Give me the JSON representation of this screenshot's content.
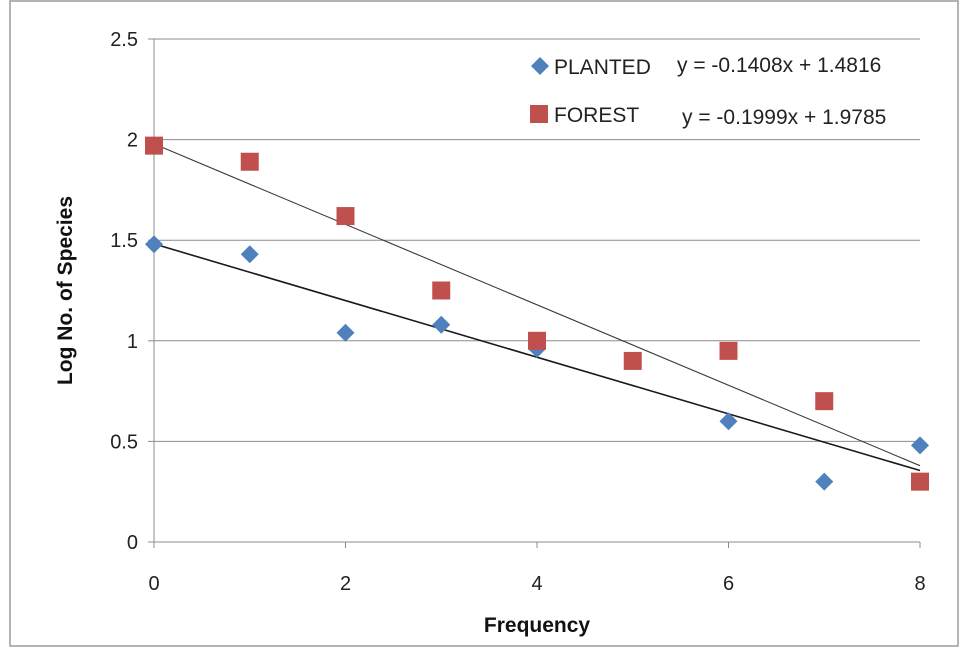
{
  "chart_data": {
    "type": "scatter",
    "title": "",
    "xlabel": "Frequency",
    "ylabel": "Log No. of Species",
    "xlim": [
      0,
      8
    ],
    "ylim": [
      0,
      2.5
    ],
    "x_ticks": [
      "0",
      "2",
      "4",
      "6",
      "8"
    ],
    "y_ticks": [
      "0",
      "0.5",
      "1",
      "1.5",
      "2",
      "2.5"
    ],
    "grid": "horizontal",
    "legend_position": "top-right",
    "series": [
      {
        "name": "PLANTED",
        "marker": "diamond",
        "color": "#4f81bd",
        "x": [
          0,
          1,
          2,
          3,
          4,
          6,
          7,
          8
        ],
        "y": [
          1.48,
          1.43,
          1.04,
          1.08,
          0.96,
          0.6,
          0.3,
          0.48
        ],
        "trendline": {
          "slope": -0.1408,
          "intercept": 1.4816,
          "equation": "y = -0.1408x + 1.4816"
        }
      },
      {
        "name": "FOREST",
        "marker": "square",
        "color": "#c0504d",
        "x": [
          0,
          1,
          2,
          3,
          4,
          5,
          6,
          7,
          8
        ],
        "y": [
          1.97,
          1.89,
          1.62,
          1.25,
          1.0,
          0.9,
          0.95,
          0.7,
          0.3
        ],
        "trendline": {
          "slope": -0.1999,
          "intercept": 1.9785,
          "equation": "y = -0.1999x + 1.9785"
        }
      }
    ]
  }
}
